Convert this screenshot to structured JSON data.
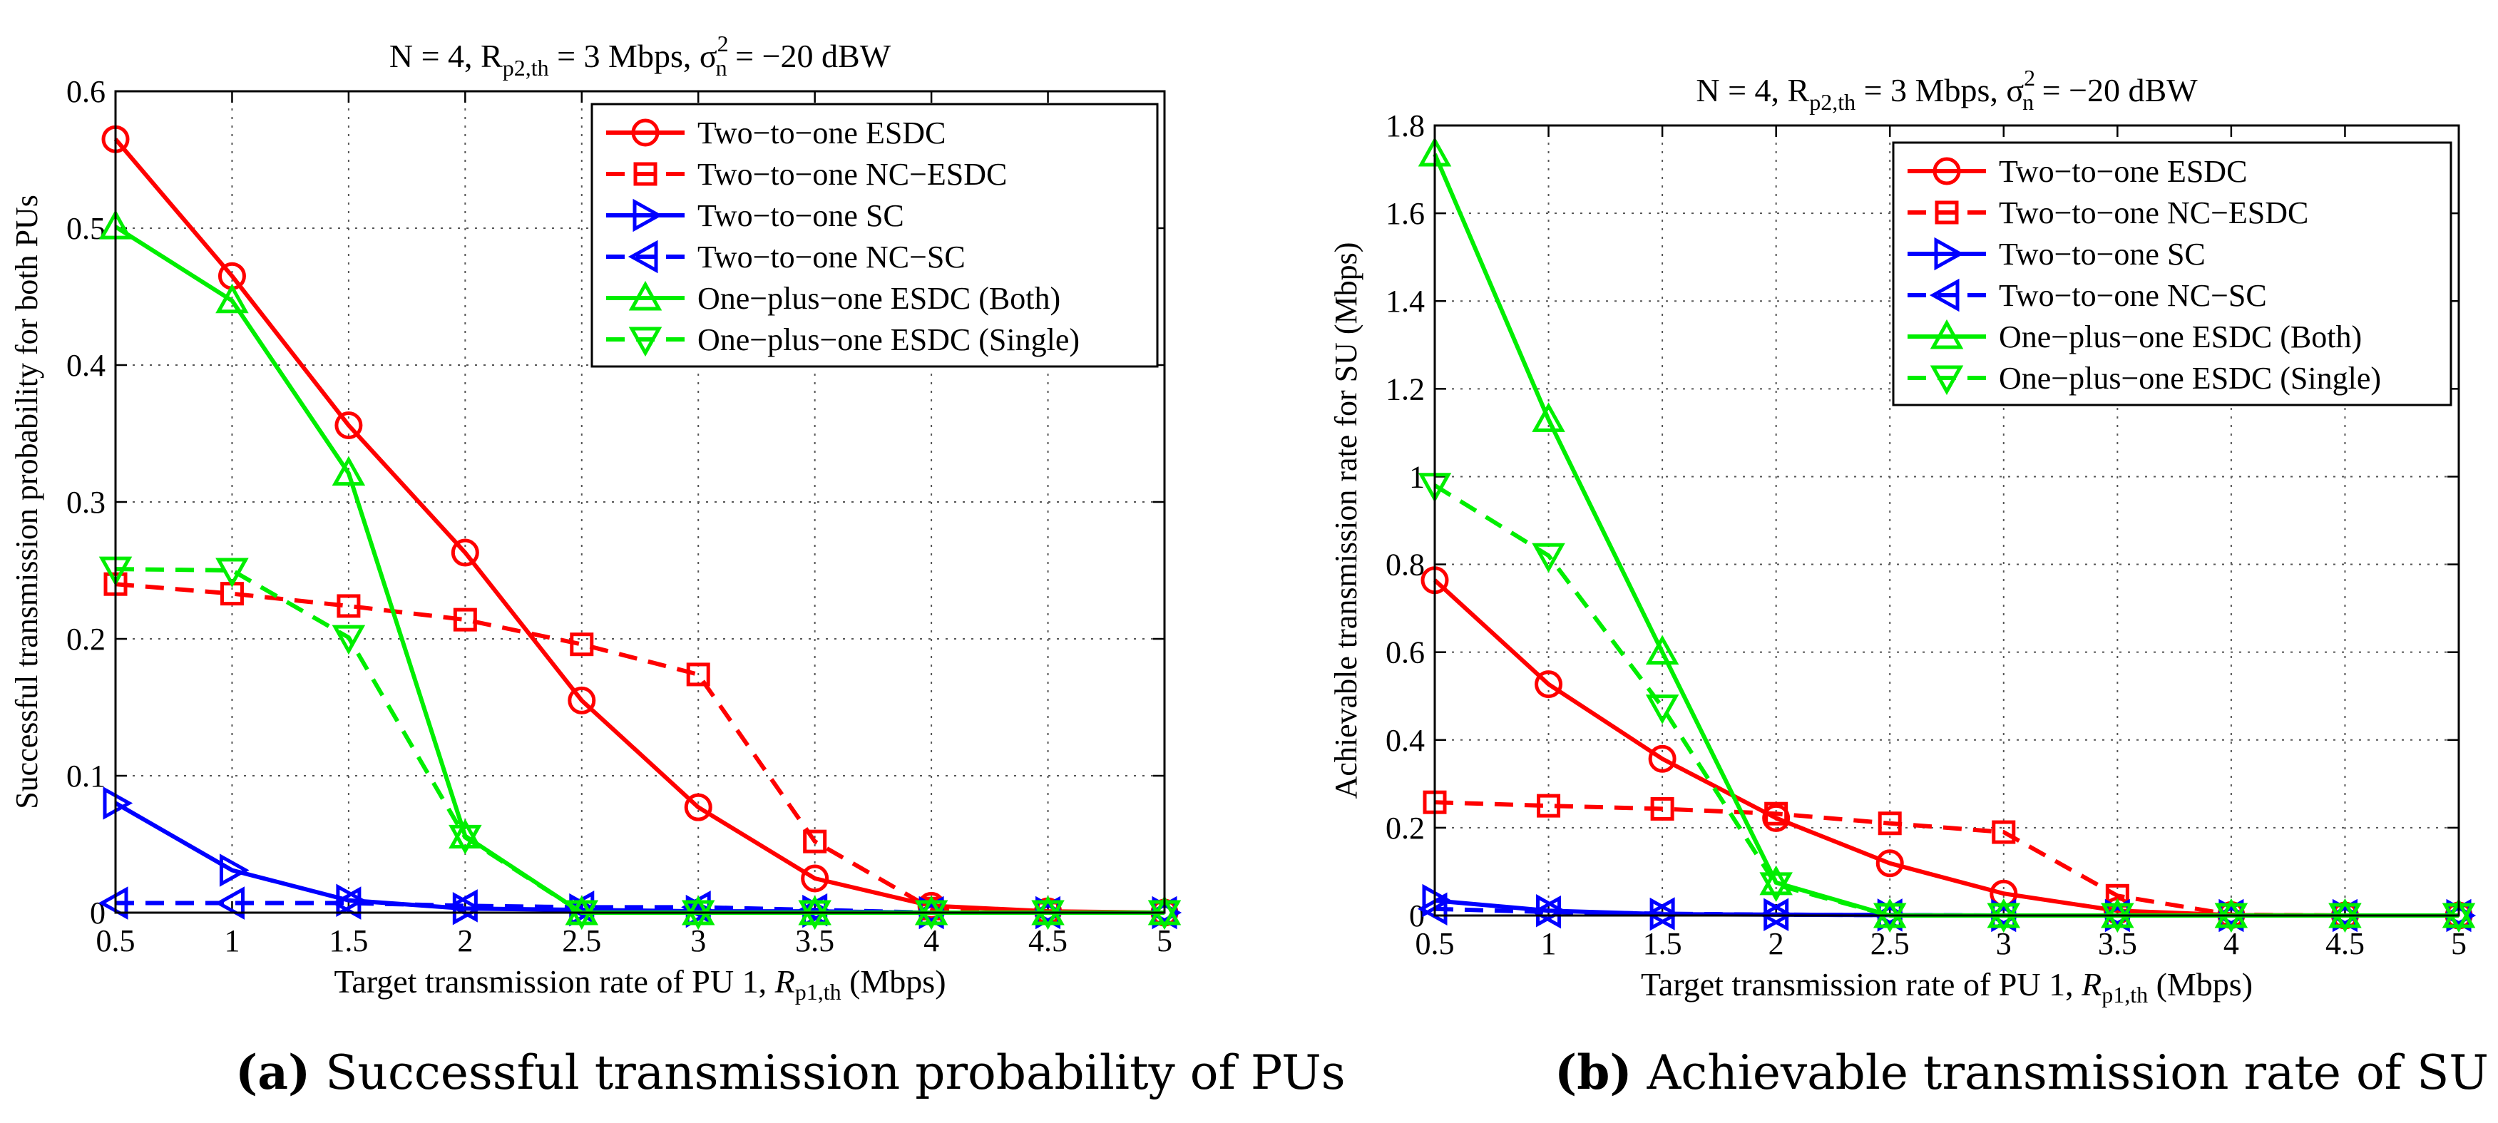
{
  "chart_data": [
    {
      "type": "line",
      "title_parts": [
        "N = 4, R",
        "p2,th",
        " = 3 Mbps, σ",
        "2",
        "n",
        " = −20 dBW"
      ],
      "xlabel_parts": [
        "Target transmission rate of PU 1, ",
        "R",
        "p1,th",
        " (Mbps)"
      ],
      "ylabel": "Successful transmission probability for both PUs",
      "xlim": [
        0.5,
        5
      ],
      "ylim": [
        0,
        0.6
      ],
      "xticks": [
        0.5,
        1,
        1.5,
        2,
        2.5,
        3,
        3.5,
        4,
        4.5,
        5
      ],
      "xtick_labels": [
        "0.5",
        "1",
        "1.5",
        "2",
        "2.5",
        "3",
        "3.5",
        "4",
        "4.5",
        "5"
      ],
      "yticks": [
        0,
        0.1,
        0.2,
        0.3,
        0.4,
        0.5,
        0.6
      ],
      "ytick_labels": [
        "0",
        "0.1",
        "0.2",
        "0.3",
        "0.4",
        "0.5",
        "0.6"
      ],
      "grid": true,
      "legend_position": "top-right",
      "x": [
        0.5,
        1,
        1.5,
        2,
        2.5,
        3,
        3.5,
        4,
        4.5,
        5
      ],
      "series": [
        {
          "name": "Two−to−one ESDC",
          "color": "#ff0000",
          "dash": false,
          "marker": "circle",
          "values": [
            0.565,
            0.465,
            0.356,
            0.263,
            0.155,
            0.077,
            0.025,
            0.005,
            0.001,
            0.0
          ]
        },
        {
          "name": "Two−to−one NC−ESDC",
          "color": "#ff0000",
          "dash": true,
          "marker": "square",
          "values": [
            0.24,
            0.233,
            0.224,
            0.214,
            0.196,
            0.174,
            0.052,
            0.003,
            0.0,
            0.0
          ]
        },
        {
          "name": "Two−to−one SC",
          "color": "#0000ff",
          "dash": false,
          "marker": "triangle-right",
          "values": [
            0.08,
            0.031,
            0.009,
            0.003,
            0.002,
            0.001,
            0.001,
            0.0,
            0.0,
            0.0
          ]
        },
        {
          "name": "Two−to−one NC−SC",
          "color": "#0000ff",
          "dash": true,
          "marker": "triangle-left",
          "values": [
            0.007,
            0.007,
            0.007,
            0.005,
            0.004,
            0.004,
            0.002,
            0.0,
            0.0,
            0.0
          ]
        },
        {
          "name": "One−plus−one ESDC (Both)",
          "color": "#00ee00",
          "dash": false,
          "marker": "triangle-up",
          "values": [
            0.501,
            0.447,
            0.321,
            0.056,
            0.0,
            0.0,
            0.0,
            0.0,
            0.0,
            0.0
          ]
        },
        {
          "name": "One−plus−one ESDC (Single)",
          "color": "#00ee00",
          "dash": true,
          "marker": "triangle-down",
          "values": [
            0.251,
            0.25,
            0.201,
            0.055,
            0.0,
            0.0,
            0.0,
            0.0,
            0.0,
            0.0
          ]
        }
      ]
    },
    {
      "type": "line",
      "title_parts": [
        "N = 4, R",
        "p2,th",
        " = 3 Mbps, σ",
        "2",
        "n",
        " = −20 dBW"
      ],
      "xlabel_parts": [
        "Target transmission rate of PU 1, ",
        "R",
        "p1,th",
        " (Mbps)"
      ],
      "ylabel": "Achievable transmission rate for SU (Mbps)",
      "xlim": [
        0.5,
        5
      ],
      "ylim": [
        0,
        1.8
      ],
      "xticks": [
        0.5,
        1,
        1.5,
        2,
        2.5,
        3,
        3.5,
        4,
        4.5,
        5
      ],
      "xtick_labels": [
        "0.5",
        "1",
        "1.5",
        "2",
        "2.5",
        "3",
        "3.5",
        "4",
        "4.5",
        "5"
      ],
      "yticks": [
        0,
        0.2,
        0.4,
        0.6,
        0.8,
        1.0,
        1.2,
        1.4,
        1.6,
        1.8
      ],
      "ytick_labels": [
        "0",
        "0.2",
        "0.4",
        "0.6",
        "0.8",
        "1",
        "1.2",
        "1.4",
        "1.6",
        "1.8"
      ],
      "grid": true,
      "legend_position": "top-right",
      "x": [
        0.5,
        1,
        1.5,
        2,
        2.5,
        3,
        3.5,
        4,
        4.5,
        5
      ],
      "series": [
        {
          "name": "Two−to−one ESDC",
          "color": "#ff0000",
          "dash": false,
          "marker": "circle",
          "values": [
            0.764,
            0.527,
            0.357,
            0.222,
            0.119,
            0.05,
            0.011,
            0.001,
            0.0,
            0.0
          ]
        },
        {
          "name": "Two−to−one NC−ESDC",
          "color": "#ff0000",
          "dash": true,
          "marker": "square",
          "values": [
            0.258,
            0.25,
            0.243,
            0.232,
            0.21,
            0.19,
            0.045,
            0.002,
            0.0,
            0.0
          ]
        },
        {
          "name": "Two−to−one SC",
          "color": "#0000ff",
          "dash": false,
          "marker": "triangle-right",
          "values": [
            0.034,
            0.011,
            0.003,
            0.002,
            0.001,
            0.0,
            0.0,
            0.0,
            0.0,
            0.0
          ]
        },
        {
          "name": "Two−to−one NC−SC",
          "color": "#0000ff",
          "dash": true,
          "marker": "triangle-left",
          "values": [
            0.015,
            0.008,
            0.004,
            0.002,
            0.001,
            0.0,
            0.0,
            0.0,
            0.0,
            0.0
          ]
        },
        {
          "name": "One−plus−one ESDC (Both)",
          "color": "#00ee00",
          "dash": false,
          "marker": "triangle-up",
          "values": [
            1.735,
            1.13,
            0.6,
            0.075,
            0.0,
            0.0,
            0.0,
            0.0,
            0.0,
            0.0
          ]
        },
        {
          "name": "One−plus−one ESDC (Single)",
          "color": "#00ee00",
          "dash": true,
          "marker": "triangle-down",
          "values": [
            0.98,
            0.82,
            0.475,
            0.07,
            0.0,
            0.0,
            0.0,
            0.0,
            0.0,
            0.0
          ]
        }
      ]
    }
  ],
  "captions": [
    {
      "tag": "(a)",
      "text": "Successful transmission probability of PUs"
    },
    {
      "tag": "(b)",
      "text": "Achievable transmission rate of SU"
    }
  ]
}
